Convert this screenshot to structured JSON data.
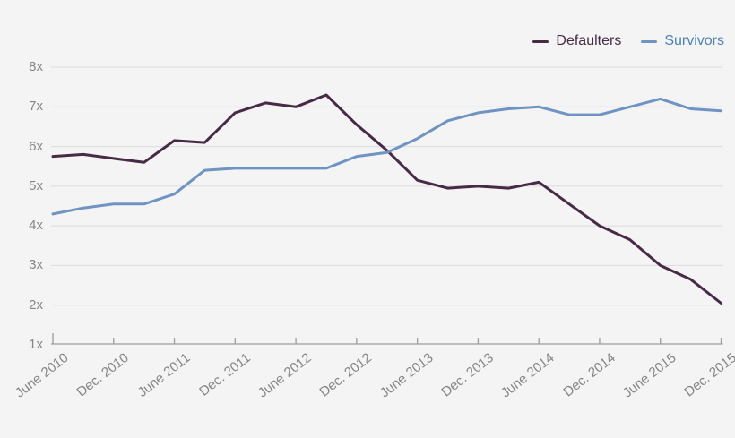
{
  "theme": {
    "background": "#f5f4f5",
    "grid_color": "#dcdbdc",
    "axis_color": "#9c9c9c",
    "tick_label_color": "#858585"
  },
  "chart_data": {
    "type": "line",
    "title": "",
    "xlabel": "",
    "ylabel": "",
    "ylim": [
      1,
      8
    ],
    "grid": true,
    "legend_position": "top-right",
    "y_tick_labels": [
      "8x",
      "7x",
      "6x",
      "5x",
      "4x",
      "3x",
      "2x",
      "1x"
    ],
    "x_tick_labels": [
      "June 2010",
      "Dec. 2010",
      "June 2011",
      "Dec. 2011",
      "June 2012",
      "Dec. 2012",
      "June 2013",
      "Dec. 2013",
      "June 2014",
      "Dec. 2014",
      "June 2015",
      "Dec. 2015"
    ],
    "categories": [
      "June 2010",
      "Sept. 2010",
      "Dec. 2010",
      "Mar. 2011",
      "June 2011",
      "Sept. 2011",
      "Dec. 2011",
      "Mar. 2012",
      "June 2012",
      "Sept. 2012",
      "Dec. 2012",
      "Mar. 2013",
      "June 2013",
      "Sept. 2013",
      "Dec. 2013",
      "Mar. 2014",
      "June 2014",
      "Sept. 2014",
      "Dec. 2014",
      "Mar. 2015",
      "June 2015",
      "Sept. 2015",
      "Dec. 2015"
    ],
    "series": [
      {
        "name": "Defaulters",
        "color": "#472a45",
        "label_color": "#472a45",
        "values": [
          5.75,
          5.8,
          5.7,
          5.6,
          6.15,
          6.1,
          6.85,
          7.1,
          7.0,
          7.3,
          6.55,
          5.9,
          5.15,
          4.95,
          5.0,
          4.95,
          5.1,
          4.55,
          4.0,
          3.65,
          3.0,
          2.65,
          2.05
        ]
      },
      {
        "name": "Survivors",
        "color": "#7094c2",
        "label_color": "#4c82b6",
        "values": [
          4.3,
          4.45,
          4.55,
          4.55,
          4.8,
          5.4,
          5.45,
          5.45,
          5.45,
          5.45,
          5.75,
          5.85,
          6.2,
          6.65,
          6.85,
          6.95,
          7.0,
          6.8,
          6.8,
          7.0,
          7.2,
          6.95,
          6.9
        ]
      }
    ]
  }
}
